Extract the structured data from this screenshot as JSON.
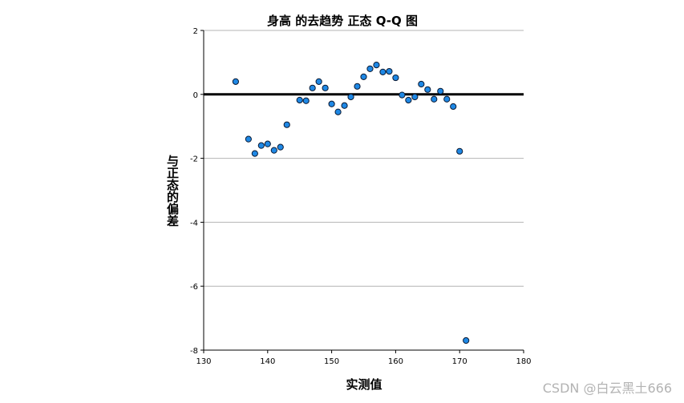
{
  "chart_data": {
    "type": "scatter",
    "title": "身高 的去趋势 正态 Q-Q 图",
    "xlabel": "实测值",
    "ylabel": "与正态的偏差",
    "xlim": [
      130,
      180
    ],
    "ylim": [
      -8,
      2
    ],
    "x_ticks": [
      130,
      140,
      150,
      160,
      170,
      180
    ],
    "y_ticks": [
      2,
      0,
      -2,
      -4,
      -6,
      -8
    ],
    "grid": "horizontal",
    "reference_line_y": 0,
    "point_color": "#1e88e5",
    "x": [
      135,
      137,
      138,
      139,
      140,
      141,
      142,
      143,
      145,
      146,
      147,
      148,
      149,
      150,
      151,
      152,
      153,
      154,
      155,
      156,
      157,
      158,
      159,
      160,
      161,
      162,
      163,
      164,
      165,
      166,
      167,
      168,
      169,
      170,
      171
    ],
    "y": [
      0.4,
      -1.4,
      -1.85,
      -1.6,
      -1.55,
      -1.75,
      -1.65,
      -0.95,
      -0.18,
      -0.2,
      0.2,
      0.4,
      0.2,
      -0.3,
      -0.55,
      -0.35,
      -0.08,
      0.25,
      0.55,
      0.8,
      0.92,
      0.7,
      0.72,
      0.52,
      -0.02,
      -0.18,
      -0.08,
      0.32,
      0.15,
      -0.15,
      0.1,
      -0.15,
      -0.38,
      -1.78,
      -7.7
    ]
  },
  "watermark": "CSDN @白云黑土666"
}
